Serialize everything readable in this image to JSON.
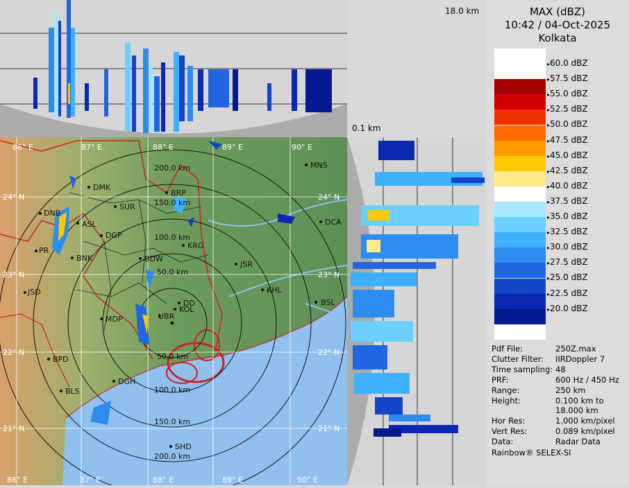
{
  "header": {
    "title": "MAX (dBZ)",
    "time": "10:42 / 04-Oct-2025",
    "station": "Kolkata"
  },
  "profile_labels": {
    "top_height": "18.0 km",
    "bottom_height": "0.1 km"
  },
  "legend": {
    "bands": [
      {
        "color": "#ffffff"
      },
      {
        "color": "#ffffff"
      },
      {
        "color": "#a40000"
      },
      {
        "color": "#d20000"
      },
      {
        "color": "#f03200"
      },
      {
        "color": "#ff6a00"
      },
      {
        "color": "#ff9a00"
      },
      {
        "color": "#ffc800"
      },
      {
        "color": "#ffe98a"
      },
      {
        "color": "#ffffff"
      },
      {
        "color": "#a8e8ff"
      },
      {
        "color": "#6cd0ff"
      },
      {
        "color": "#3fb0ff"
      },
      {
        "color": "#2c8cf0"
      },
      {
        "color": "#1f66e0"
      },
      {
        "color": "#1444c8"
      },
      {
        "color": "#0a28b0"
      },
      {
        "color": "#041890"
      },
      {
        "color": "#ffffff"
      }
    ],
    "labels": [
      "60.0 dBZ",
      "57.5 dBZ",
      "55.0 dBZ",
      "52.5 dBZ",
      "50.0 dBZ",
      "47.5 dBZ",
      "45.0 dBZ",
      "42.5 dBZ",
      "40.0 dBZ",
      "37.5 dBZ",
      "35.0 dBZ",
      "32.5 dBZ",
      "30.0 dBZ",
      "27.5 dBZ",
      "25.0 dBZ",
      "22.5 dBZ",
      "20.0 dBZ"
    ]
  },
  "info": [
    {
      "key": "Pdf File:",
      "value": "250Z.max"
    },
    {
      "key": "Clutter Filter:",
      "value": "IIRDoppler 7"
    },
    {
      "key": "Time sampling:",
      "value": "48"
    },
    {
      "key": "PRF:",
      "value": "600 Hz / 450 Hz"
    },
    {
      "key": "Range:",
      "value": "250 km"
    },
    {
      "key": "Height:",
      "value": "0.100 km to"
    },
    {
      "key": "",
      "value": "18.000 km"
    },
    {
      "key": "Hor Res:",
      "value": "1.000 km/pixel"
    },
    {
      "key": "Vert Res:",
      "value": "0.089 km/pixel"
    },
    {
      "key": "Data:",
      "value": "Radar Data"
    }
  ],
  "footer": "Rainbow® SELEX-SI",
  "map": {
    "longitude_labels": [
      "86° E",
      "87° E",
      "88° E",
      "89° E",
      "90° E"
    ],
    "latitude_labels": [
      "24° N",
      "23° N",
      "22° N",
      "21° N"
    ],
    "range_labels": [
      "50.0 km",
      "100.0 km",
      "150.0 km",
      "200.0 km"
    ],
    "places": [
      {
        "name": "MNS"
      },
      {
        "name": "DMK"
      },
      {
        "name": "BRP"
      },
      {
        "name": "SUR"
      },
      {
        "name": "DNB"
      },
      {
        "name": "ASL"
      },
      {
        "name": "DGP"
      },
      {
        "name": "DCA"
      },
      {
        "name": "KRG"
      },
      {
        "name": "PR"
      },
      {
        "name": "BNK"
      },
      {
        "name": "BDW"
      },
      {
        "name": "JSR"
      },
      {
        "name": "KHL"
      },
      {
        "name": "JSD"
      },
      {
        "name": "DD"
      },
      {
        "name": "KOL"
      },
      {
        "name": "UBR"
      },
      {
        "name": "BSL"
      },
      {
        "name": "MDP"
      },
      {
        "name": "BPD"
      },
      {
        "name": "DGH"
      },
      {
        "name": "BLS"
      },
      {
        "name": "SHD"
      }
    ]
  }
}
